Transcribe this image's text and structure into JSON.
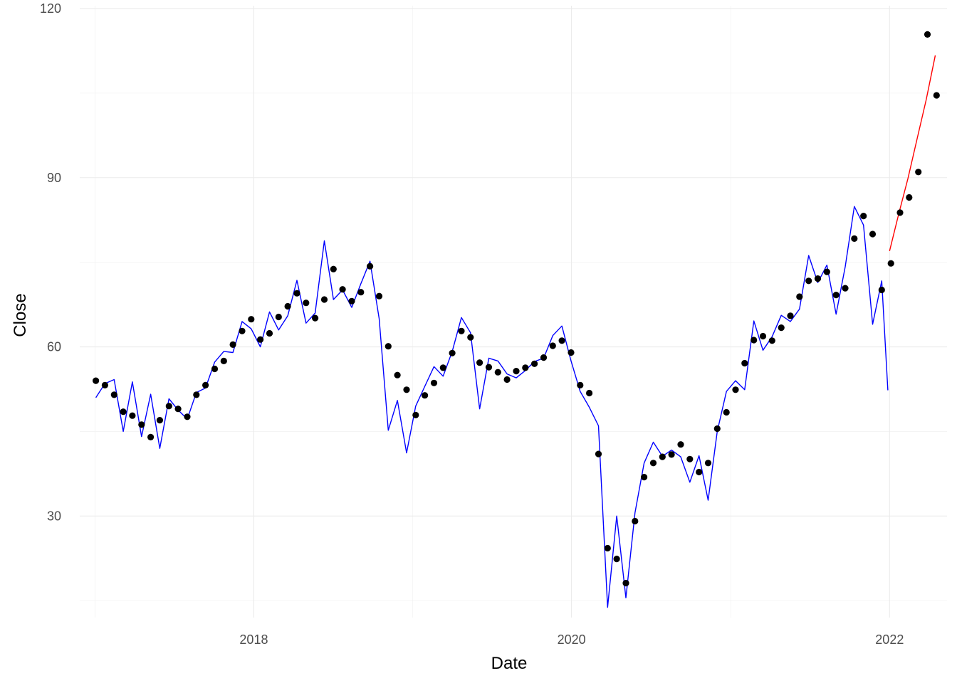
{
  "chart_data": {
    "type": "scatter",
    "title": "",
    "xlabel": "Date",
    "ylabel": "Close",
    "xlim": [
      "2016-11-27",
      "2022-05-13"
    ],
    "ylim": [
      12,
      120.5
    ],
    "grid": true,
    "legend": "none",
    "x_ticks": [
      {
        "value": "2018-01-01",
        "label": "2018"
      },
      {
        "value": "2020-01-01",
        "label": "2020"
      },
      {
        "value": "2022-01-01",
        "label": "2022"
      }
    ],
    "y_ticks": [
      {
        "value": 30,
        "label": "30"
      },
      {
        "value": 60,
        "label": "60"
      },
      {
        "value": 90,
        "label": "90"
      },
      {
        "value": 120,
        "label": "120"
      }
    ],
    "colors": {
      "points": "#000000",
      "fitted_line": "#0000ff",
      "forecast_line": "#ff0000"
    },
    "series": [
      {
        "kind": "points",
        "color": "#000000",
        "x": [
          "2017-01-03",
          "2017-01-24",
          "2017-02-14",
          "2017-03-07",
          "2017-03-28",
          "2017-04-18",
          "2017-05-09",
          "2017-05-30",
          "2017-06-20",
          "2017-07-11",
          "2017-08-01",
          "2017-08-22",
          "2017-09-12",
          "2017-10-03",
          "2017-10-24",
          "2017-11-14",
          "2017-12-05",
          "2017-12-26",
          "2018-01-16",
          "2018-02-06",
          "2018-02-27",
          "2018-03-20",
          "2018-04-10",
          "2018-05-01",
          "2018-05-22",
          "2018-06-12",
          "2018-07-03",
          "2018-07-24",
          "2018-08-14",
          "2018-09-04",
          "2018-09-25",
          "2018-10-16",
          "2018-11-06",
          "2018-11-27",
          "2018-12-18",
          "2019-01-08",
          "2019-01-29",
          "2019-02-19",
          "2019-03-12",
          "2019-04-02",
          "2019-04-23",
          "2019-05-14",
          "2019-06-04",
          "2019-06-25",
          "2019-07-16",
          "2019-08-06",
          "2019-08-27",
          "2019-09-17",
          "2019-10-08",
          "2019-10-29",
          "2019-11-19",
          "2019-12-10",
          "2019-12-31",
          "2020-01-21",
          "2020-02-11",
          "2020-03-03",
          "2020-03-24",
          "2020-04-14",
          "2020-05-05",
          "2020-05-26",
          "2020-06-16",
          "2020-07-07",
          "2020-07-28",
          "2020-08-18",
          "2020-09-08",
          "2020-09-29",
          "2020-10-20",
          "2020-11-10",
          "2020-12-01",
          "2020-12-22",
          "2021-01-12",
          "2021-02-02",
          "2021-02-23",
          "2021-03-16",
          "2021-04-06",
          "2021-04-27",
          "2021-05-18",
          "2021-06-08",
          "2021-06-29",
          "2021-07-20",
          "2021-08-10",
          "2021-08-31",
          "2021-09-21",
          "2021-10-12",
          "2021-11-02",
          "2021-11-23",
          "2021-12-14",
          "2022-01-04",
          "2022-01-25",
          "2022-02-15",
          "2022-03-08",
          "2022-03-29",
          "2022-04-19"
        ],
        "y": [
          54.0,
          53.2,
          51.5,
          48.5,
          47.8,
          46.2,
          44.0,
          47.0,
          49.5,
          49.0,
          47.6,
          51.5,
          53.2,
          56.1,
          57.5,
          60.4,
          62.8,
          64.9,
          61.3,
          62.4,
          65.3,
          67.2,
          69.5,
          67.8,
          65.1,
          68.4,
          73.8,
          70.2,
          68.1,
          69.7,
          74.3,
          69.0,
          60.1,
          55.0,
          52.4,
          47.9,
          51.4,
          53.6,
          56.3,
          58.9,
          62.8,
          61.7,
          57.2,
          56.4,
          55.5,
          54.2,
          55.7,
          56.3,
          57.0,
          58.1,
          60.2,
          61.1,
          59.0,
          53.2,
          51.8,
          41.0,
          24.3,
          22.4,
          18.1,
          29.1,
          36.9,
          39.4,
          40.5,
          40.9,
          42.7,
          40.1,
          37.8,
          39.4,
          45.5,
          48.4,
          52.4,
          57.1,
          61.2,
          61.9,
          61.1,
          63.4,
          65.5,
          68.9,
          71.7,
          72.1,
          73.3,
          69.2,
          70.4,
          79.2,
          83.2,
          80.0,
          70.1,
          74.8,
          83.8,
          86.5,
          91.0,
          115.4,
          104.6
        ]
      },
      {
        "kind": "line",
        "color": "#0000ff",
        "x": [
          "2017-01-03",
          "2017-01-24",
          "2017-02-14",
          "2017-03-07",
          "2017-03-28",
          "2017-04-18",
          "2017-05-09",
          "2017-05-30",
          "2017-06-20",
          "2017-07-11",
          "2017-08-01",
          "2017-08-22",
          "2017-09-12",
          "2017-10-03",
          "2017-10-24",
          "2017-11-14",
          "2017-12-05",
          "2017-12-26",
          "2018-01-16",
          "2018-02-06",
          "2018-02-27",
          "2018-03-20",
          "2018-04-10",
          "2018-05-01",
          "2018-05-22",
          "2018-06-12",
          "2018-07-03",
          "2018-07-24",
          "2018-08-14",
          "2018-09-04",
          "2018-09-25",
          "2018-10-16",
          "2018-11-06",
          "2018-11-27",
          "2018-12-18",
          "2019-01-08",
          "2019-01-29",
          "2019-02-19",
          "2019-03-12",
          "2019-04-02",
          "2019-04-23",
          "2019-05-14",
          "2019-06-04",
          "2019-06-25",
          "2019-07-16",
          "2019-08-06",
          "2019-08-27",
          "2019-09-17",
          "2019-10-08",
          "2019-10-29",
          "2019-11-19",
          "2019-12-10",
          "2019-12-31",
          "2020-01-21",
          "2020-02-11",
          "2020-03-03",
          "2020-03-24",
          "2020-04-14",
          "2020-05-05",
          "2020-05-26",
          "2020-06-16",
          "2020-07-07",
          "2020-07-28",
          "2020-08-18",
          "2020-09-08",
          "2020-09-29",
          "2020-10-20",
          "2020-11-10",
          "2020-12-01",
          "2020-12-22",
          "2021-01-12",
          "2021-02-02",
          "2021-02-23",
          "2021-03-16",
          "2021-04-06",
          "2021-04-27",
          "2021-05-18",
          "2021-06-08",
          "2021-06-29",
          "2021-07-20",
          "2021-08-10",
          "2021-08-31",
          "2021-09-21",
          "2021-10-12",
          "2021-11-02",
          "2021-11-23",
          "2021-12-14",
          "2021-12-28"
        ],
        "y": [
          51.0,
          53.5,
          54.2,
          45.0,
          53.8,
          44.1,
          51.6,
          42.0,
          50.8,
          48.8,
          47.2,
          51.9,
          52.7,
          57.3,
          59.2,
          59.0,
          64.5,
          63.2,
          60.0,
          66.2,
          63.0,
          65.5,
          71.8,
          64.2,
          66.0,
          78.8,
          68.4,
          70.1,
          67.0,
          71.2,
          75.2,
          65.0,
          45.2,
          50.5,
          41.2,
          49.5,
          53.0,
          56.5,
          54.8,
          59.2,
          65.2,
          62.5,
          49.0,
          58.0,
          57.5,
          55.2,
          54.5,
          55.8,
          57.4,
          58.0,
          62.0,
          63.7,
          57.5,
          52.1,
          49.3,
          46.0,
          13.8,
          30.0,
          15.5,
          30.6,
          39.4,
          43.1,
          40.6,
          41.7,
          40.5,
          36.0,
          40.7,
          32.8,
          45.0,
          52.1,
          54.0,
          52.4,
          64.6,
          59.4,
          61.8,
          65.6,
          64.5,
          66.7,
          76.2,
          71.4,
          74.5,
          65.8,
          74.2,
          84.9,
          81.6,
          64.0,
          71.7,
          52.3
        ]
      },
      {
        "kind": "line",
        "color": "#ff0000",
        "x": [
          "2022-01-01",
          "2022-01-22",
          "2022-02-12",
          "2022-03-05",
          "2022-03-26",
          "2022-04-16"
        ],
        "y": [
          77.0,
          83.6,
          89.8,
          96.8,
          103.8,
          111.7
        ]
      }
    ]
  }
}
